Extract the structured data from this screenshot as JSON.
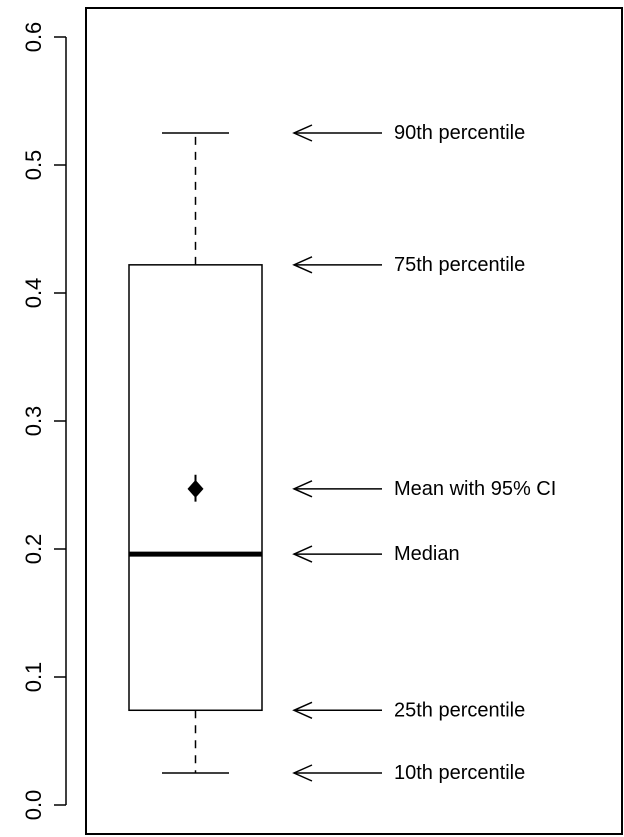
{
  "chart_data": {
    "type": "box",
    "ylim": [
      0.0,
      0.6
    ],
    "yticks": [
      {
        "value": 0.0,
        "label": "0.0"
      },
      {
        "value": 0.1,
        "label": "0.1"
      },
      {
        "value": 0.2,
        "label": "0.2"
      },
      {
        "value": 0.3,
        "label": "0.3"
      },
      {
        "value": 0.4,
        "label": "0.4"
      },
      {
        "value": 0.5,
        "label": "0.5"
      },
      {
        "value": 0.6,
        "label": "0.6"
      }
    ],
    "box": {
      "p10": 0.025,
      "p25": 0.074,
      "median": 0.196,
      "mean": 0.247,
      "mean_ci": [
        0.237,
        0.258
      ],
      "p75": 0.422,
      "p90": 0.525
    },
    "annotations": [
      {
        "key": "p90",
        "text": "90th percentile"
      },
      {
        "key": "p75",
        "text": "75th percentile"
      },
      {
        "key": "mean",
        "text": "Mean with 95% CI"
      },
      {
        "key": "median",
        "text": "Median"
      },
      {
        "key": "p25",
        "text": "25th percentile"
      },
      {
        "key": "p10",
        "text": "10th percentile"
      }
    ],
    "grid": false
  }
}
